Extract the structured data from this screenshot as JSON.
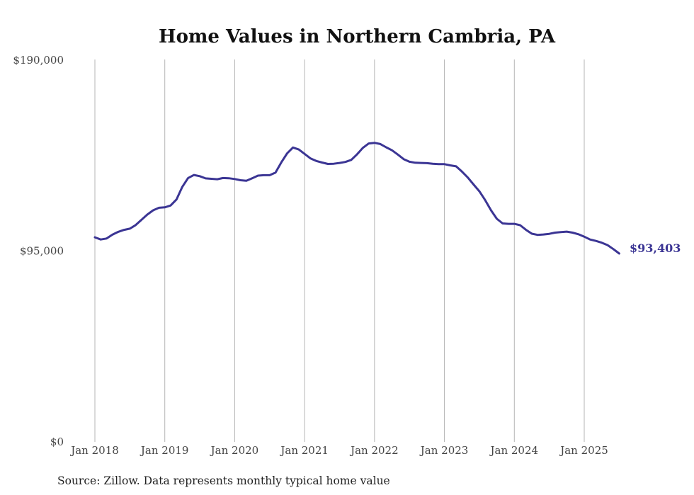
{
  "colors": {
    "series": "#3b3594",
    "grid": "#b5b5b5",
    "text": "#444444"
  },
  "chart_data": {
    "type": "line",
    "title": "Home Values in Northern Cambria, PA",
    "source": "Source: Zillow. Data represents monthly typical home value",
    "ylim": [
      0,
      190000
    ],
    "yticks": [
      {
        "value": 0,
        "label": "$0"
      },
      {
        "value": 95000,
        "label": "$95,000"
      },
      {
        "value": 190000,
        "label": "$190,000"
      }
    ],
    "xticks": [
      {
        "value": 2018,
        "label": "Jan 2018"
      },
      {
        "value": 2019,
        "label": "Jan 2019"
      },
      {
        "value": 2020,
        "label": "Jan 2020"
      },
      {
        "value": 2021,
        "label": "Jan 2021"
      },
      {
        "value": 2022,
        "label": "Jan 2022"
      },
      {
        "value": 2023,
        "label": "Jan 2023"
      },
      {
        "value": 2024,
        "label": "Jan 2024"
      },
      {
        "value": 2025,
        "label": "Jan 2025"
      }
    ],
    "grid": "vertical",
    "end_label": "$93,403",
    "series": [
      {
        "x": [
          2018.0,
          2018.083,
          2018.167,
          2018.25,
          2018.333,
          2018.417,
          2018.5,
          2018.583,
          2018.667,
          2018.75,
          2018.833,
          2018.917,
          2019.0,
          2019.083,
          2019.167,
          2019.25,
          2019.333,
          2019.417,
          2019.5,
          2019.583,
          2019.667,
          2019.75,
          2019.833,
          2019.917,
          2020.0,
          2020.083,
          2020.167,
          2020.25,
          2020.333,
          2020.417,
          2020.5,
          2020.583,
          2020.667,
          2020.75,
          2020.833,
          2020.917,
          2021.0,
          2021.083,
          2021.167,
          2021.25,
          2021.333,
          2021.417,
          2021.5,
          2021.583,
          2021.667,
          2021.75,
          2021.833,
          2021.917,
          2022.0,
          2022.083,
          2022.167,
          2022.25,
          2022.333,
          2022.417,
          2022.5,
          2022.583,
          2022.667,
          2022.75,
          2022.833,
          2022.917,
          2023.0,
          2023.083,
          2023.167,
          2023.25,
          2023.333,
          2023.417,
          2023.5,
          2023.583,
          2023.667,
          2023.75,
          2023.833,
          2023.917,
          2024.0,
          2024.083,
          2024.167,
          2024.25,
          2024.333,
          2024.417,
          2024.5,
          2024.583,
          2024.667,
          2024.75,
          2024.833,
          2024.917,
          2025.0,
          2025.083,
          2025.167,
          2025.25,
          2025.333,
          2025.417,
          2025.5
        ],
        "values": [
          101500,
          100400,
          100900,
          102800,
          104200,
          105200,
          105800,
          107600,
          110200,
          112800,
          114900,
          116200,
          116400,
          117300,
          120300,
          126600,
          131000,
          132500,
          131900,
          130800,
          130600,
          130400,
          131000,
          130900,
          130500,
          129900,
          129600,
          130900,
          132200,
          132400,
          132400,
          133700,
          138800,
          143300,
          146200,
          145200,
          143000,
          140800,
          139500,
          138700,
          138000,
          138100,
          138500,
          139000,
          140000,
          142800,
          146000,
          148200,
          148500,
          147900,
          146300,
          144800,
          142700,
          140400,
          139100,
          138600,
          138500,
          138400,
          138100,
          137900,
          137900,
          137300,
          136800,
          134200,
          131300,
          127800,
          124400,
          120000,
          114900,
          110700,
          108400,
          108200,
          108200,
          107500,
          105200,
          103300,
          102700,
          102900,
          103200,
          103800,
          104100,
          104300,
          103800,
          103000,
          101800,
          100400,
          99700,
          98800,
          97600,
          95600,
          93403
        ]
      }
    ]
  }
}
